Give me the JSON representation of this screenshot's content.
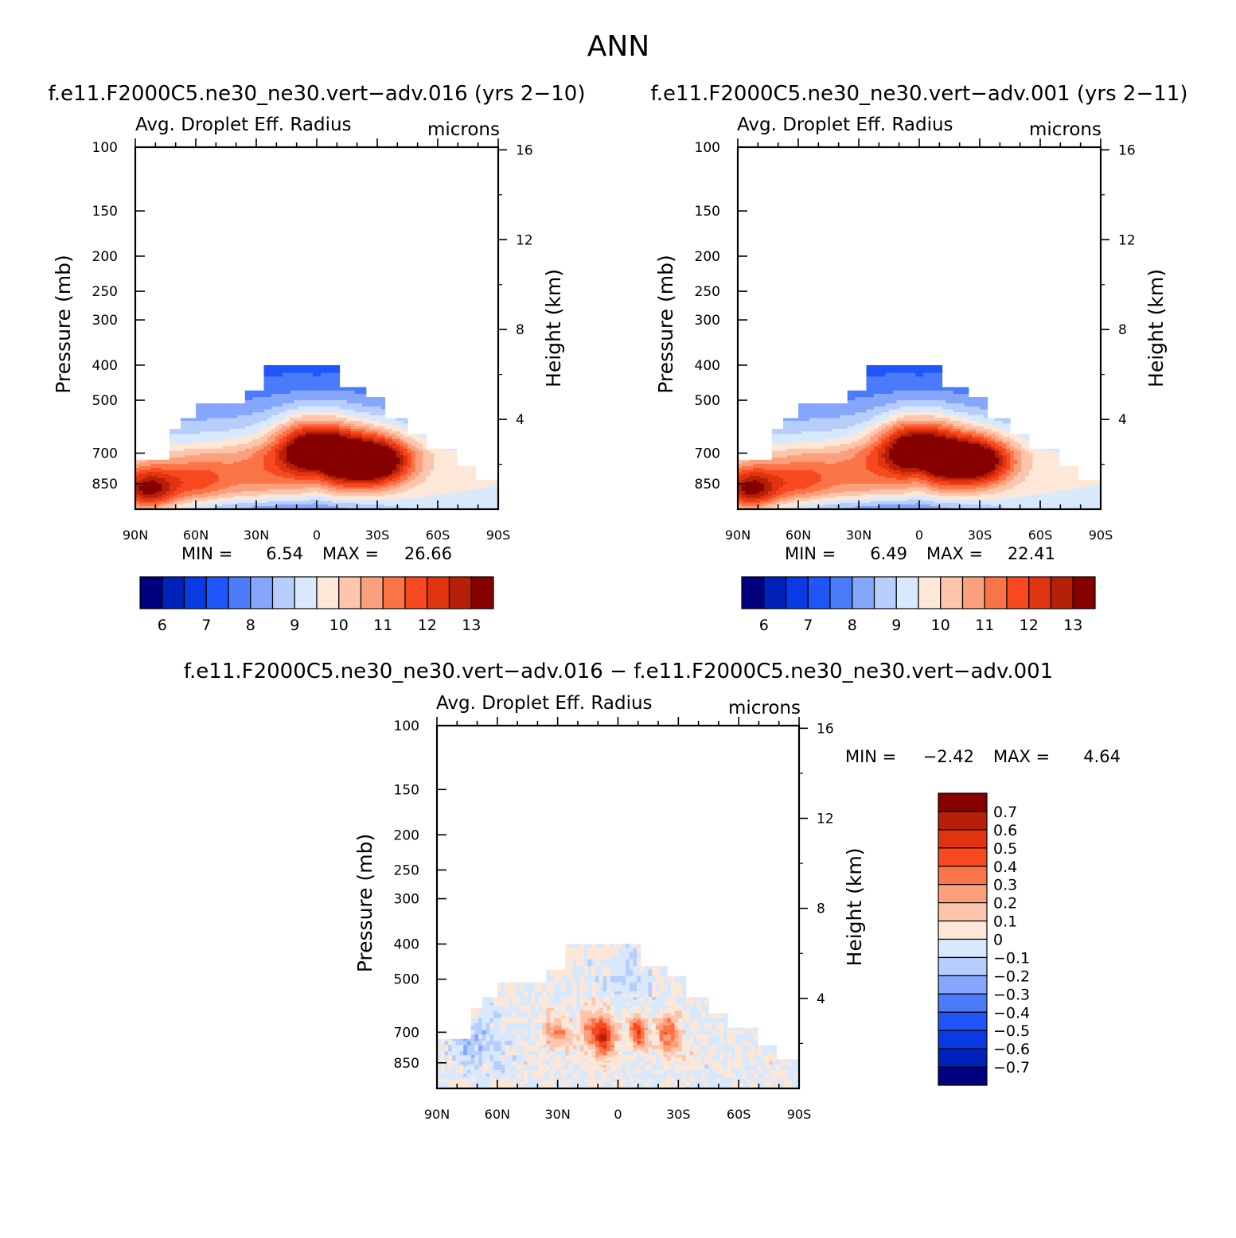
{
  "page": {
    "title": "ANN"
  },
  "panels": [
    {
      "case_title": "f.e11.F2000C5.ne30_ne30.vert−adv.016 (yrs 2−10)",
      "field": "Avg. Droplet Eff. Radius",
      "units": "microns",
      "ylabel": "Pressure (mb)",
      "y2label": "Height (km)",
      "min_label": "MIN =",
      "min_value": "6.54",
      "max_label": "MAX =",
      "max_value": "26.66"
    },
    {
      "case_title": "f.e11.F2000C5.ne30_ne30.vert−adv.001 (yrs 2−11)",
      "field": "Avg. Droplet Eff. Radius",
      "units": "microns",
      "ylabel": "Pressure (mb)",
      "y2label": "Height (km)",
      "min_label": "MIN =",
      "min_value": "6.49",
      "max_label": "MAX =",
      "max_value": "22.41"
    },
    {
      "case_title": "f.e11.F2000C5.ne30_ne30.vert−adv.016 − f.e11.F2000C5.ne30_ne30.vert−adv.001",
      "field": "Avg. Droplet Eff. Radius",
      "units": "microns",
      "ylabel": "Pressure (mb)",
      "y2label": "Height (km)",
      "min_label": "MIN =",
      "min_value": "−2.42",
      "max_label": "MAX =",
      "max_value": "4.64"
    }
  ],
  "chart_data": [
    {
      "type": "heatmap",
      "x_ticks": [
        "90N",
        "60N",
        "30N",
        "0",
        "30S",
        "60S",
        "90S"
      ],
      "y_ticks": [
        "100",
        "150",
        "200",
        "250",
        "300",
        "400",
        "500",
        "700",
        "850"
      ],
      "y2_ticks": [
        "16",
        "12",
        "8",
        "4"
      ],
      "levels": [
        6,
        6.5,
        7,
        7.5,
        8,
        8.5,
        9,
        9.5,
        10,
        10.5,
        11,
        11.5,
        12,
        12.5,
        13
      ],
      "level_labels": [
        "6",
        "7",
        "8",
        "9",
        "10",
        "11",
        "12",
        "13"
      ],
      "colors": [
        "#00007f",
        "#0022bb",
        "#0a3ae4",
        "#1f55f9",
        "#4a7bfa",
        "#84a6fb",
        "#b7cefc",
        "#d9e9fd",
        "#fde8d8",
        "#fcc5ac",
        "#fba07c",
        "#fa7447",
        "#f8481f",
        "#e03410",
        "#b72008",
        "#870000"
      ]
    },
    {
      "type": "heatmap",
      "x_ticks": [
        "90N",
        "60N",
        "30N",
        "0",
        "30S",
        "60S",
        "90S"
      ],
      "y_ticks": [
        "100",
        "150",
        "200",
        "250",
        "300",
        "400",
        "500",
        "700",
        "850"
      ],
      "y2_ticks": [
        "16",
        "12",
        "8",
        "4"
      ],
      "levels": [
        6,
        6.5,
        7,
        7.5,
        8,
        8.5,
        9,
        9.5,
        10,
        10.5,
        11,
        11.5,
        12,
        12.5,
        13
      ],
      "level_labels": [
        "6",
        "7",
        "8",
        "9",
        "10",
        "11",
        "12",
        "13"
      ],
      "colors": [
        "#00007f",
        "#0022bb",
        "#0a3ae4",
        "#1f55f9",
        "#4a7bfa",
        "#84a6fb",
        "#b7cefc",
        "#d9e9fd",
        "#fde8d8",
        "#fcc5ac",
        "#fba07c",
        "#fa7447",
        "#f8481f",
        "#e03410",
        "#b72008",
        "#870000"
      ]
    },
    {
      "type": "heatmap",
      "x_ticks": [
        "90N",
        "60N",
        "30N",
        "0",
        "30S",
        "60S",
        "90S"
      ],
      "y_ticks": [
        "100",
        "150",
        "200",
        "250",
        "300",
        "400",
        "500",
        "700",
        "850"
      ],
      "y2_ticks": [
        "16",
        "12",
        "8",
        "4"
      ],
      "levels": [
        -0.7,
        -0.6,
        -0.5,
        -0.4,
        -0.3,
        -0.2,
        -0.1,
        0,
        0.1,
        0.2,
        0.3,
        0.4,
        0.5,
        0.6,
        0.7
      ],
      "level_labels": [
        "0.7",
        "0.6",
        "0.5",
        "0.4",
        "0.3",
        "0.2",
        "0.1",
        "0",
        "−0.1",
        "−0.2",
        "−0.3",
        "−0.4",
        "−0.5",
        "−0.6",
        "−0.7"
      ],
      "colors": [
        "#00007f",
        "#0022bb",
        "#0a3ae4",
        "#1f55f9",
        "#4a7bfa",
        "#84a6fb",
        "#b7cefc",
        "#d9e9fd",
        "#fde8d8",
        "#fcc5ac",
        "#fba07c",
        "#fa7447",
        "#f8481f",
        "#e03410",
        "#b72008",
        "#870000"
      ]
    }
  ]
}
